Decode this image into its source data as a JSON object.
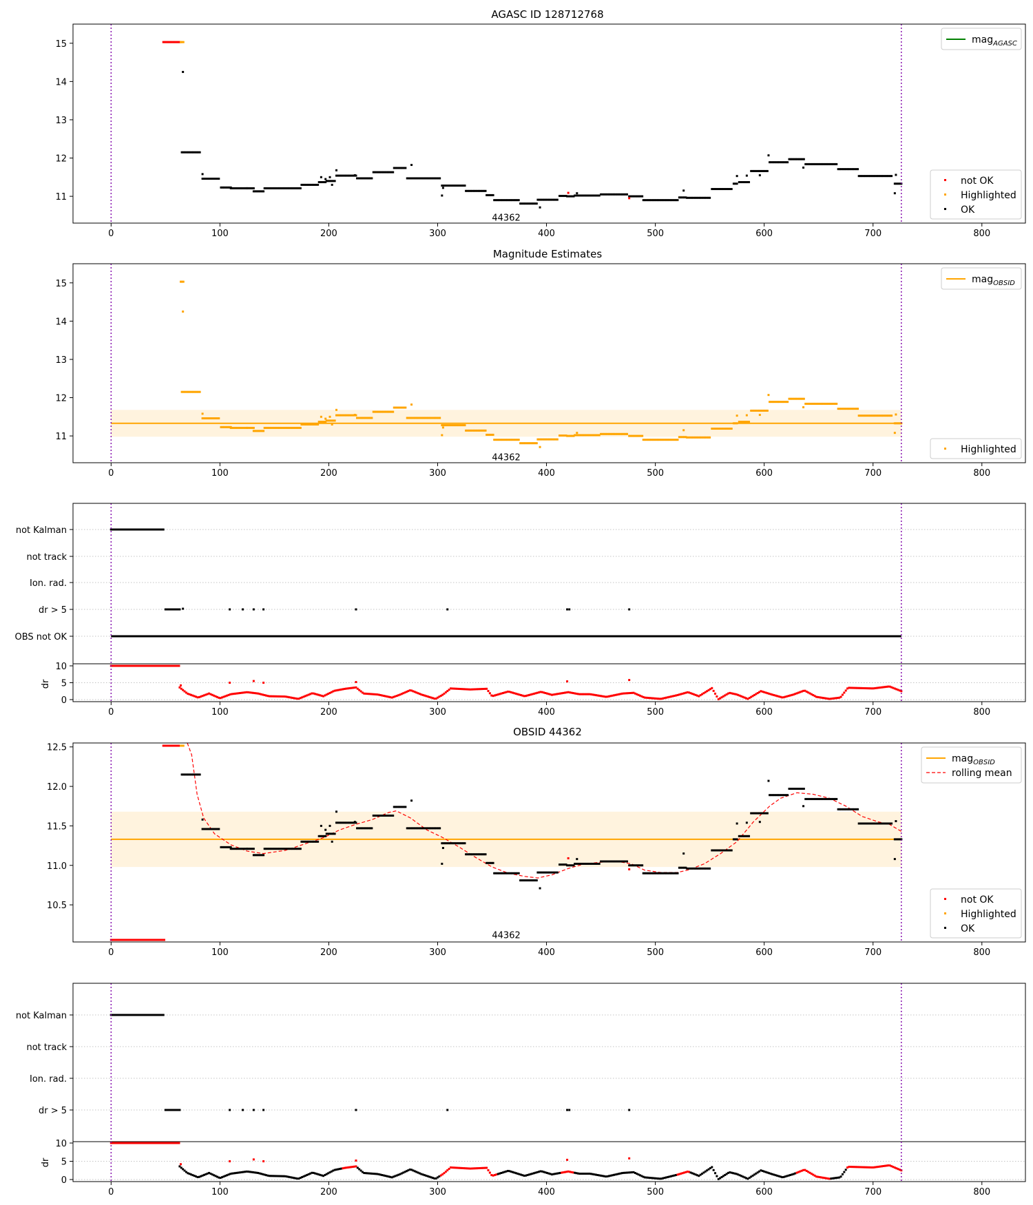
{
  "chart_data": [
    {
      "type": "scatter",
      "title": "AGASC ID 128712768",
      "xlim": [
        -35,
        840
      ],
      "ylim": [
        10.3,
        15.5
      ],
      "xticks": [
        0,
        100,
        200,
        300,
        400,
        500,
        600,
        700,
        800
      ],
      "yticks": [
        11,
        12,
        13,
        14,
        15
      ],
      "vlines": [
        0,
        726
      ],
      "annotation": {
        "text": "44362",
        "x": 363,
        "y": 10.45
      },
      "legend_top": [
        {
          "label_base": "mag",
          "label_sub": "AGASC",
          "color": "#008000",
          "style": "line"
        }
      ],
      "legend_bottom": [
        {
          "label": "not OK",
          "color": "#ff0000"
        },
        {
          "label": "Highlighted",
          "color": "#ffa500"
        },
        {
          "label": "OK",
          "color": "#000000"
        }
      ]
    },
    {
      "type": "scatter",
      "title": "Magnitude Estimates",
      "xlim": [
        -35,
        840
      ],
      "ylim": [
        10.3,
        15.5
      ],
      "xticks": [
        0,
        100,
        200,
        300,
        400,
        500,
        600,
        700,
        800
      ],
      "yticks": [
        11,
        12,
        13,
        14,
        15
      ],
      "vlines": [
        0,
        726
      ],
      "mag_obsid": 11.33,
      "band": [
        10.98,
        11.68
      ],
      "annotation": {
        "text": "44362",
        "x": 363,
        "y": 10.45
      },
      "legend_top": [
        {
          "label_base": "mag",
          "label_sub": "OBSID",
          "color": "#ffa500",
          "style": "line"
        }
      ],
      "legend_bottom": [
        {
          "label": "Highlighted",
          "color": "#ffa500"
        }
      ]
    },
    {
      "type": "flags",
      "xlim": [
        -35,
        840
      ],
      "xticks": [
        0,
        100,
        200,
        300,
        400,
        500,
        600,
        700,
        800
      ],
      "categories": [
        "not Kalman",
        "not track",
        "Ion. rad.",
        "dr > 5",
        "OBS not OK"
      ],
      "vlines": [
        0,
        726
      ],
      "dr_axis": {
        "ylabel": "dr",
        "yticks": [
          0,
          5,
          10
        ]
      }
    },
    {
      "type": "scatter",
      "title": "OBSID 44362",
      "xlim": [
        -35,
        840
      ],
      "ylim": [
        10.03,
        12.55
      ],
      "xticks": [
        0,
        100,
        200,
        300,
        400,
        500,
        600,
        700,
        800
      ],
      "yticks": [
        10.5,
        11.0,
        11.5,
        12.0,
        12.5
      ],
      "ytick_labels": [
        "10.5",
        "11.0",
        "11.5",
        "12.0",
        "12.5"
      ],
      "vlines": [
        0,
        726
      ],
      "mag_obsid": 11.33,
      "band": [
        10.98,
        11.68
      ],
      "annotation": {
        "text": "44362",
        "x": 363,
        "y": 10.12
      },
      "legend_top": [
        {
          "label_base": "mag",
          "label_sub": "OBSID",
          "color": "#ffa500",
          "style": "line"
        },
        {
          "label_base": "rolling mean",
          "label_sub": "",
          "color": "#ff0000",
          "style": "dashed"
        }
      ],
      "legend_bottom": [
        {
          "label": "not OK",
          "color": "#ff0000"
        },
        {
          "label": "Highlighted",
          "color": "#ffa500"
        },
        {
          "label": "OK",
          "color": "#000000"
        }
      ]
    },
    {
      "type": "flags",
      "xlim": [
        -35,
        840
      ],
      "xticks": [
        0,
        100,
        200,
        300,
        400,
        500,
        600,
        700,
        800
      ],
      "categories": [
        "not Kalman",
        "not track",
        "Ion. rad.",
        "dr > 5"
      ],
      "vlines": [
        0,
        726
      ],
      "dr_axis": {
        "ylabel": "dr",
        "yticks": [
          0,
          5,
          10
        ]
      }
    }
  ],
  "series": {
    "mag_steps": [
      [
        65,
        82,
        12.15
      ],
      [
        84,
        100,
        11.46
      ],
      [
        101,
        110,
        11.23
      ],
      [
        110,
        125,
        11.21
      ],
      [
        125,
        131,
        11.21
      ],
      [
        131,
        140,
        11.13
      ],
      [
        141,
        175,
        11.21
      ],
      [
        175,
        191,
        11.3
      ],
      [
        191,
        198,
        11.37
      ],
      [
        198,
        206,
        11.4
      ],
      [
        207,
        225,
        11.54
      ],
      [
        226,
        240,
        11.47
      ],
      [
        241,
        259,
        11.63
      ],
      [
        260,
        271,
        11.74
      ],
      [
        272,
        303,
        11.47
      ],
      [
        304,
        325,
        11.28
      ],
      [
        326,
        344,
        11.14
      ],
      [
        345,
        351,
        11.03
      ],
      [
        352,
        375,
        10.9
      ],
      [
        376,
        391,
        10.81
      ],
      [
        392,
        411,
        10.91
      ],
      [
        412,
        418,
        11.01
      ],
      [
        419,
        425,
        11.0
      ],
      [
        426,
        449,
        11.02
      ],
      [
        450,
        475,
        11.05
      ],
      [
        476,
        488,
        11.0
      ],
      [
        489,
        521,
        10.9
      ],
      [
        522,
        528,
        10.97
      ],
      [
        529,
        551,
        10.96
      ],
      [
        552,
        571,
        11.19
      ],
      [
        572,
        576,
        11.33
      ],
      [
        577,
        587,
        11.37
      ],
      [
        588,
        604,
        11.66
      ],
      [
        605,
        622,
        11.89
      ],
      [
        623,
        637,
        11.97
      ],
      [
        638,
        667,
        11.84
      ],
      [
        668,
        686,
        11.71
      ],
      [
        687,
        718,
        11.53
      ],
      [
        720,
        726,
        11.33
      ]
    ],
    "mag_outliers": [
      [
        66,
        14.25
      ],
      [
        84,
        11.58
      ],
      [
        193,
        11.5
      ],
      [
        197,
        11.45
      ],
      [
        201,
        11.5
      ],
      [
        203,
        11.3
      ],
      [
        207,
        11.68
      ],
      [
        224,
        11.55
      ],
      [
        276,
        11.82
      ],
      [
        304,
        11.02
      ],
      [
        305,
        11.22
      ],
      [
        394,
        10.71
      ],
      [
        428,
        11.08
      ],
      [
        526,
        11.15
      ],
      [
        575,
        11.53
      ],
      [
        584,
        11.54
      ],
      [
        596,
        11.55
      ],
      [
        604,
        12.07
      ],
      [
        636,
        11.75
      ],
      [
        720,
        11.08
      ],
      [
        721,
        11.56
      ]
    ],
    "red_mag": [
      [
        77,
        140,
        15.03
      ]
    ],
    "orange_mag": [
      [
        140,
        143,
        15.03
      ]
    ],
    "rolling_mean": [
      [
        70,
        12.55
      ],
      [
        74,
        12.4
      ],
      [
        79,
        11.9
      ],
      [
        85,
        11.6
      ],
      [
        95,
        11.4
      ],
      [
        110,
        11.26
      ],
      [
        125,
        11.18
      ],
      [
        140,
        11.15
      ],
      [
        160,
        11.19
      ],
      [
        180,
        11.28
      ],
      [
        195,
        11.35
      ],
      [
        210,
        11.45
      ],
      [
        225,
        11.52
      ],
      [
        240,
        11.58
      ],
      [
        255,
        11.67
      ],
      [
        262,
        11.69
      ],
      [
        275,
        11.6
      ],
      [
        290,
        11.45
      ],
      [
        305,
        11.35
      ],
      [
        320,
        11.23
      ],
      [
        335,
        11.1
      ],
      [
        350,
        10.98
      ],
      [
        365,
        10.9
      ],
      [
        380,
        10.86
      ],
      [
        392,
        10.84
      ],
      [
        405,
        10.88
      ],
      [
        420,
        10.96
      ],
      [
        435,
        11.02
      ],
      [
        450,
        11.04
      ],
      [
        465,
        11.05
      ],
      [
        478,
        11.02
      ],
      [
        490,
        10.94
      ],
      [
        505,
        10.91
      ],
      [
        520,
        10.91
      ],
      [
        530,
        10.94
      ],
      [
        545,
        11.02
      ],
      [
        560,
        11.15
      ],
      [
        575,
        11.3
      ],
      [
        590,
        11.55
      ],
      [
        605,
        11.75
      ],
      [
        615,
        11.85
      ],
      [
        630,
        11.92
      ],
      [
        645,
        11.9
      ],
      [
        660,
        11.85
      ],
      [
        675,
        11.75
      ],
      [
        690,
        11.62
      ],
      [
        705,
        11.55
      ],
      [
        715,
        11.52
      ],
      [
        726,
        11.43
      ]
    ],
    "not_kalman": [
      0,
      48
    ],
    "dr5_block": [
      50,
      63
    ],
    "dr5_points": [
      109,
      121,
      131,
      140,
      225,
      309,
      419,
      421,
      476
    ],
    "obs_not_ok": [
      0,
      726
    ],
    "dr_high": [
      0,
      63
    ],
    "dr_curve": [
      [
        63,
        3.6
      ],
      [
        70,
        1.8
      ],
      [
        80,
        0.6
      ],
      [
        90,
        1.8
      ],
      [
        100,
        0.4
      ],
      [
        110,
        1.6
      ],
      [
        125,
        2.2
      ],
      [
        135,
        1.8
      ],
      [
        145,
        1.0
      ],
      [
        160,
        0.9
      ],
      [
        172,
        0.2
      ],
      [
        185,
        1.9
      ],
      [
        195,
        1.0
      ],
      [
        205,
        2.6
      ],
      [
        215,
        3.2
      ],
      [
        225,
        3.6
      ],
      [
        232,
        1.8
      ],
      [
        245,
        1.5
      ],
      [
        258,
        0.6
      ],
      [
        265,
        1.4
      ],
      [
        275,
        2.8
      ],
      [
        285,
        1.5
      ],
      [
        298,
        0.2
      ],
      [
        305,
        1.5
      ],
      [
        312,
        3.3
      ],
      [
        330,
        3.0
      ],
      [
        345,
        3.2
      ],
      [
        350,
        1.0
      ],
      [
        365,
        2.4
      ],
      [
        380,
        1.0
      ],
      [
        395,
        2.3
      ],
      [
        405,
        1.4
      ],
      [
        420,
        2.2
      ],
      [
        430,
        1.6
      ],
      [
        440,
        1.6
      ],
      [
        455,
        0.8
      ],
      [
        470,
        1.8
      ],
      [
        480,
        2.0
      ],
      [
        490,
        0.6
      ],
      [
        505,
        0.2
      ],
      [
        520,
        1.3
      ],
      [
        530,
        2.2
      ],
      [
        540,
        1.0
      ],
      [
        552,
        3.4
      ],
      [
        558,
        0.1
      ],
      [
        568,
        2.0
      ],
      [
        575,
        1.5
      ],
      [
        585,
        0.2
      ],
      [
        597,
        2.5
      ],
      [
        607,
        1.5
      ],
      [
        617,
        0.6
      ],
      [
        627,
        1.5
      ],
      [
        637,
        2.7
      ],
      [
        648,
        0.8
      ],
      [
        660,
        0.2
      ],
      [
        670,
        0.6
      ],
      [
        677,
        3.5
      ],
      [
        700,
        3.3
      ],
      [
        715,
        3.9
      ],
      [
        726,
        2.5
      ]
    ],
    "dr_outliers": [
      [
        64,
        4.2
      ],
      [
        109,
        5.0
      ],
      [
        131,
        5.5
      ],
      [
        140,
        5.0
      ],
      [
        225,
        5.2
      ],
      [
        419,
        5.4
      ],
      [
        476,
        5.8
      ]
    ],
    "dr_red_ranges": [
      [
        212,
        226
      ],
      [
        302,
        355
      ],
      [
        413,
        425
      ],
      [
        520,
        532
      ],
      [
        630,
        660
      ],
      [
        676,
        726
      ]
    ]
  }
}
